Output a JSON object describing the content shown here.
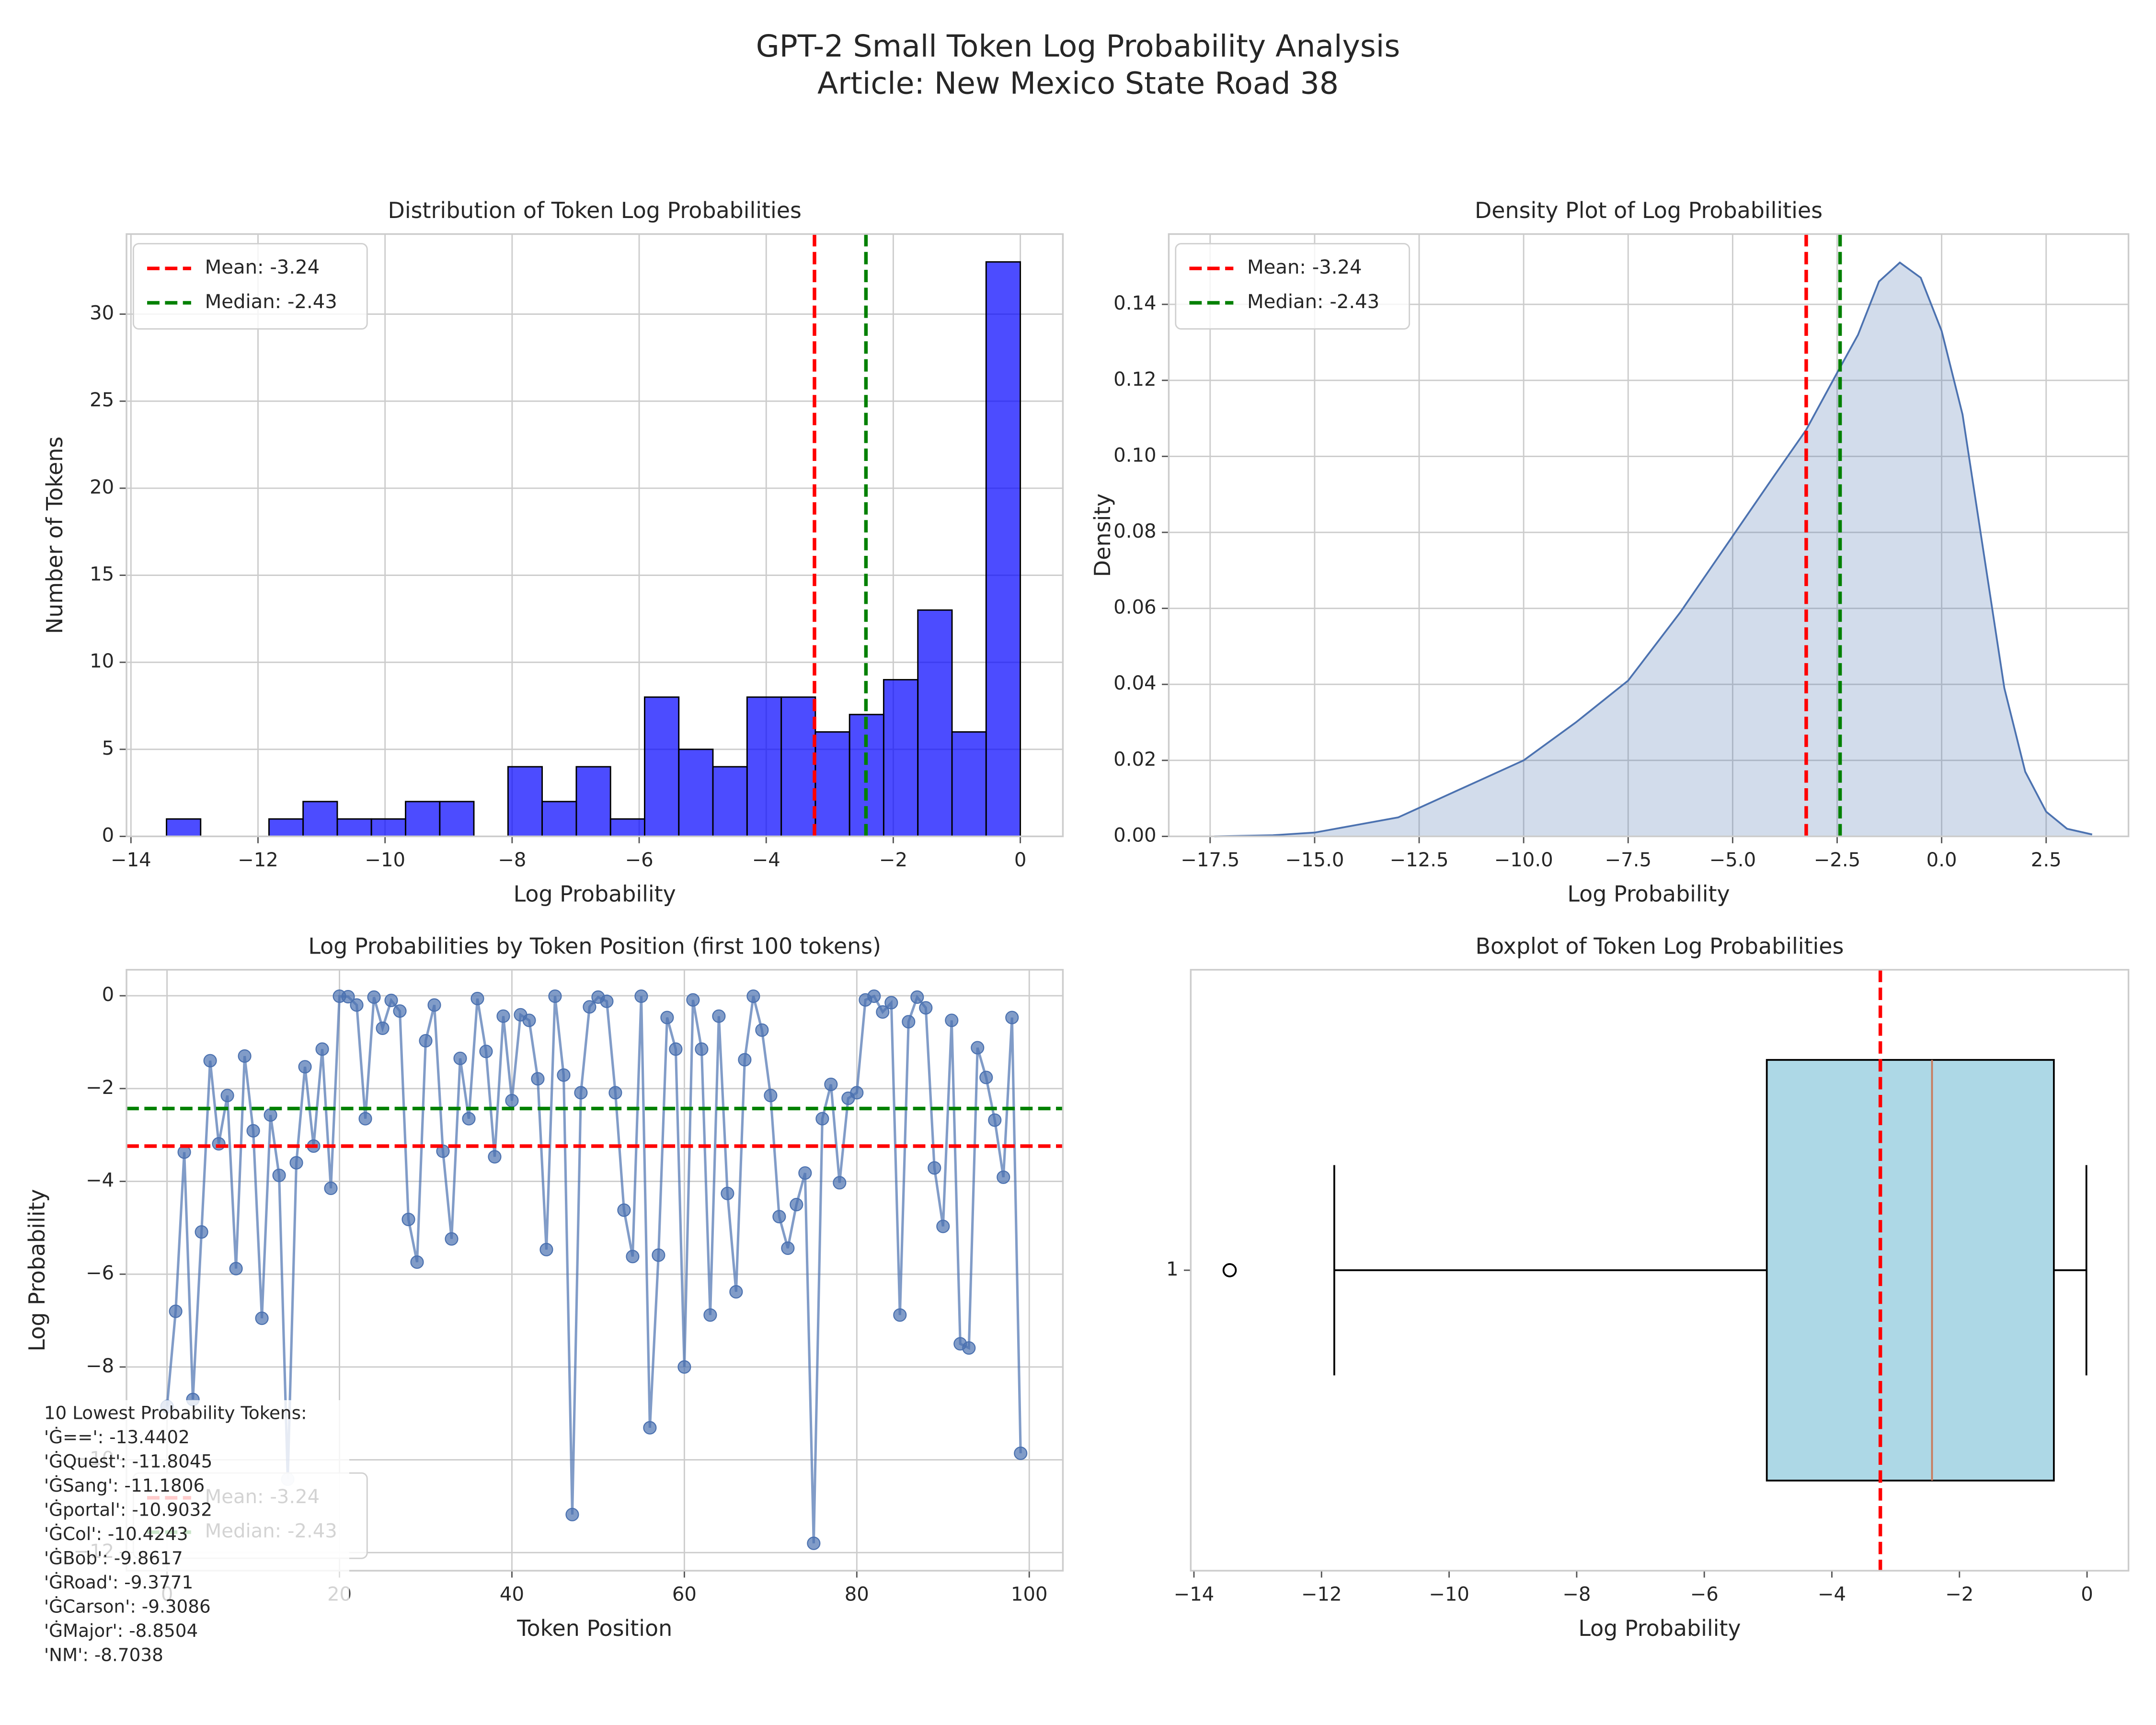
{
  "title": "GPT-2 Small Token Log Probability Analysis",
  "subtitle": "Article: New Mexico State Road 38",
  "chart_data": [
    {
      "type": "histogram",
      "title": "Distribution of Token Log Probabilities",
      "x_label": "Log Probability",
      "y_label": "Number of Tokens",
      "bins": [
        -13.44,
        -12.903,
        -12.365,
        -11.827,
        -11.29,
        -10.752,
        -10.215,
        -9.677,
        -9.139,
        -8.602,
        -8.064,
        -7.527,
        -6.989,
        -6.451,
        -5.914,
        -5.376,
        -4.839,
        -4.301,
        -3.763,
        -3.226,
        -2.688,
        -2.151,
        -1.613,
        -1.075,
        -0.538,
        0
      ],
      "values": [
        1,
        0,
        0,
        1,
        2,
        1,
        1,
        2,
        2,
        0,
        4,
        2,
        4,
        1,
        8,
        5,
        4,
        8,
        8,
        6,
        7,
        9,
        13,
        6,
        33
      ],
      "color": "blue",
      "alpha": 0.7,
      "xlim": [
        -14.07,
        0.67
      ],
      "ylim": [
        0,
        34.6
      ],
      "xticks": [
        {
          "value": -14,
          "label": "−14"
        },
        {
          "value": -12,
          "label": "−12"
        },
        {
          "value": -10,
          "label": "−10"
        },
        {
          "value": -8,
          "label": "−8"
        },
        {
          "value": -6,
          "label": "−6"
        },
        {
          "value": -4,
          "label": "−4"
        },
        {
          "value": -2,
          "label": "−2"
        },
        0
      ],
      "yticks": [
        0,
        5,
        10,
        15,
        20,
        25,
        30
      ],
      "grid": true,
      "legend": "upper left",
      "vlines": [
        {
          "name": "Mean: -3.24",
          "value": -3.24,
          "color": "red"
        },
        {
          "name": "Median: -2.43",
          "value": -2.43,
          "color": "green"
        }
      ]
    },
    {
      "type": "area",
      "title": "Density Plot of Log Probabilities",
      "x_label": "Log Probability",
      "y_label": "Density",
      "x": [
        -17.4,
        -16,
        -15,
        -14,
        -13,
        -12.5,
        -12,
        -11,
        -10,
        -8.75,
        -7.5,
        -6.25,
        -5,
        -4,
        -3.24,
        -2.5,
        -2,
        -1.5,
        -1,
        -0.5,
        0,
        0.5,
        1,
        1.5,
        2,
        2.5,
        3,
        3.6
      ],
      "values": [
        0,
        0.0003,
        0.001,
        0.003,
        0.005,
        0.0075,
        0.01,
        0.015,
        0.02,
        0.03,
        0.041,
        0.059,
        0.079,
        0.095,
        0.107,
        0.122,
        0.132,
        0.146,
        0.151,
        0.147,
        0.133,
        0.111,
        0.075,
        0.039,
        0.017,
        0.0065,
        0.002,
        0.0005
      ],
      "color": "#4c72b0",
      "alpha": 0.25,
      "xlim": [
        -18.49,
        4.47
      ],
      "ylim": [
        0,
        0.1585
      ],
      "xticks": [
        {
          "value": -17.5,
          "label": "−17.5"
        },
        {
          "value": -15,
          "label": "−15.0"
        },
        {
          "value": -12.5,
          "label": "−12.5"
        },
        {
          "value": -10,
          "label": "−10.0"
        },
        {
          "value": -7.5,
          "label": "−7.5"
        },
        {
          "value": -5,
          "label": "−5.0"
        },
        {
          "value": -2.5,
          "label": "−2.5"
        },
        {
          "value": 0,
          "label": "0.0"
        },
        2.5
      ],
      "yticks": [
        {
          "value": 0,
          "label": "0.00"
        },
        {
          "value": 0.02,
          "label": "0.02"
        },
        {
          "value": 0.04,
          "label": "0.04"
        },
        {
          "value": 0.06,
          "label": "0.06"
        },
        {
          "value": 0.08,
          "label": "0.08"
        },
        {
          "value": 0.1,
          "label": "0.10"
        },
        {
          "value": 0.12,
          "label": "0.12"
        },
        {
          "value": 0.14,
          "label": "0.14"
        }
      ],
      "grid": true,
      "legend": "upper left",
      "vlines": [
        {
          "name": "Mean: -3.24",
          "value": -3.24,
          "color": "red"
        },
        {
          "name": "Median: -2.43",
          "value": -2.43,
          "color": "green"
        }
      ]
    },
    {
      "type": "line",
      "title": "Log Probabilities by Token Position (first 100 tokens)",
      "x_label": "Token Position",
      "y_label": "Log Probability",
      "x": [
        0,
        1,
        2,
        3,
        4,
        5,
        6,
        7,
        8,
        9,
        10,
        11,
        12,
        13,
        14,
        15,
        16,
        17,
        18,
        19,
        20,
        21,
        22,
        23,
        24,
        25,
        26,
        27,
        28,
        29,
        30,
        31,
        32,
        33,
        34,
        35,
        36,
        37,
        38,
        39,
        40,
        41,
        42,
        43,
        44,
        45,
        46,
        47,
        48,
        49,
        50,
        51,
        52,
        53,
        54,
        55,
        56,
        57,
        58,
        59,
        60,
        61,
        62,
        63,
        64,
        65,
        66,
        67,
        68,
        69,
        70,
        71,
        72,
        73,
        74,
        75,
        76,
        77,
        78,
        79,
        80,
        81,
        82,
        83,
        84,
        85,
        86,
        87,
        88,
        89,
        90,
        91,
        92,
        93,
        94,
        95,
        96,
        97,
        98,
        99
      ],
      "values": [
        -8.85,
        -6.8,
        -3.37,
        -8.7,
        -5.09,
        -1.4,
        -3.19,
        -2.15,
        -5.88,
        -1.3,
        -2.91,
        -6.95,
        -2.57,
        -3.87,
        -10.42,
        -3.6,
        -1.53,
        -3.24,
        -1.15,
        -4.15,
        -0.01,
        -0.02,
        -0.2,
        -2.65,
        -0.03,
        -0.7,
        -0.1,
        -0.33,
        -4.82,
        -5.74,
        -0.97,
        -0.2,
        -3.35,
        -5.24,
        -1.35,
        -2.65,
        -0.06,
        -1.2,
        -3.47,
        -0.44,
        -2.26,
        -0.41,
        -0.53,
        -1.79,
        -5.47,
        -0.01,
        -1.71,
        -11.18,
        -2.09,
        -0.24,
        -0.03,
        -0.12,
        -2.09,
        -4.62,
        -5.62,
        -0.01,
        -9.31,
        -5.59,
        -0.47,
        -1.15,
        -8.0,
        -0.09,
        -1.15,
        -6.88,
        -0.44,
        -4.26,
        -6.38,
        -1.38,
        -0.01,
        -0.74,
        -2.15,
        -4.76,
        -5.44,
        -4.5,
        -3.82,
        -11.8,
        -2.65,
        -1.91,
        -4.03,
        -2.21,
        -2.09,
        -0.09,
        -0.01,
        -0.35,
        -0.15,
        -6.88,
        -0.56,
        -0.03,
        -0.26,
        -3.71,
        -4.97,
        -0.53,
        -7.5,
        -7.59,
        -1.12,
        -1.76,
        -2.68,
        -3.91,
        -0.47,
        -9.86
      ],
      "color": "#4c72b0",
      "alpha": 0.7,
      "xlim": [
        -4.7,
        103.9
      ],
      "ylim": [
        -12.39,
        0.56
      ],
      "xticks": [
        0,
        20,
        40,
        60,
        80,
        100
      ],
      "yticks": [
        {
          "value": -12,
          "label": "−12"
        },
        {
          "value": -10,
          "label": "−10"
        },
        {
          "value": -8,
          "label": "−8"
        },
        {
          "value": -6,
          "label": "−6"
        },
        {
          "value": -4,
          "label": "−4"
        },
        {
          "value": -2,
          "label": "−2"
        },
        0
      ],
      "grid": true,
      "legend": "lower left",
      "hlines": [
        {
          "name": "Mean: -3.24",
          "value": -3.24,
          "color": "red"
        },
        {
          "name": "Median: -2.43",
          "value": -2.43,
          "color": "green"
        }
      ],
      "annotation": {
        "title": "10 Lowest Probability Tokens:",
        "lines": [
          "'Ġ==': -13.4402",
          "'ĠQuest': -11.8045",
          "'ĠSang': -11.1806",
          "'Ġportal': -10.9032",
          "'ĠCol': -10.4243",
          "'ĠBob': -9.8617",
          "'ĠRoad': -9.3771",
          "'ĠCarson': -9.3086",
          "'ĠMajor': -8.8504",
          "'NM': -8.7038"
        ]
      }
    },
    {
      "type": "box",
      "title": "Boxplot of Token Log Probabilities",
      "x_label": "Log Probability",
      "whislo": -11.8,
      "q1": -5.02,
      "med": -2.43,
      "q3": -0.52,
      "whishi": -0.01,
      "fliers": [
        -13.44
      ],
      "color": "lightblue",
      "median_color": "#c97b5c",
      "xlim": [
        -14.05,
        0.65
      ],
      "ylim": [
        0.5,
        1.5
      ],
      "xticks": [
        {
          "value": -14,
          "label": "−14"
        },
        {
          "value": -12,
          "label": "−12"
        },
        {
          "value": -10,
          "label": "−10"
        },
        {
          "value": -8,
          "label": "−8"
        },
        {
          "value": -6,
          "label": "−6"
        },
        {
          "value": -4,
          "label": "−4"
        },
        {
          "value": -2,
          "label": "−2"
        },
        0
      ],
      "yticks": [
        1
      ],
      "grid": false,
      "vlines": [
        {
          "value": -3.24,
          "color": "red"
        }
      ]
    }
  ]
}
